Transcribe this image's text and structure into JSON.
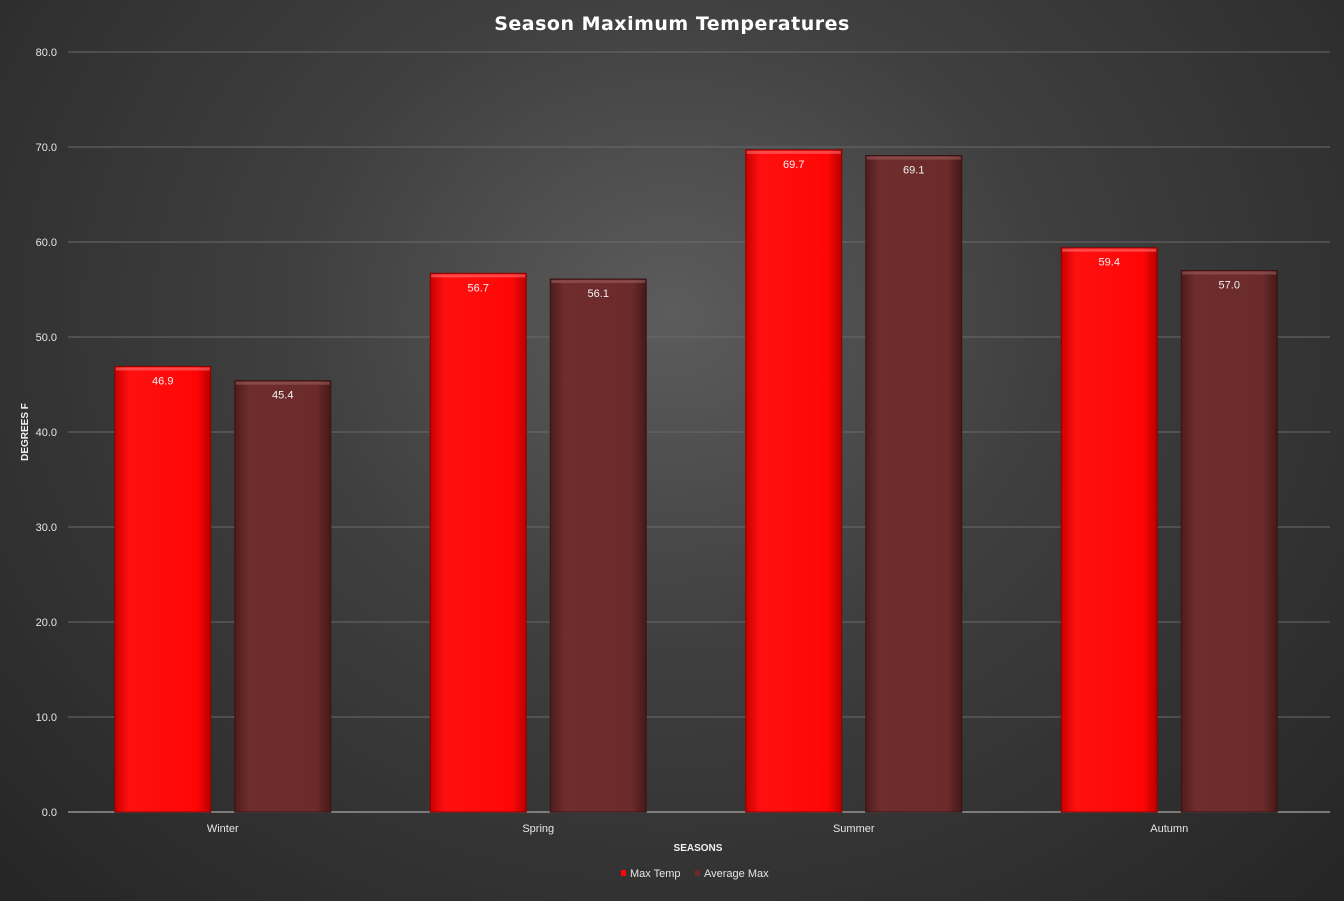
{
  "chart_data": {
    "type": "bar",
    "title": "Season Maximum Temperatures",
    "xlabel": "SEASONS",
    "ylabel": "DEGREES F",
    "categories": [
      "Winter",
      "Spring",
      "Summer",
      "Autumn"
    ],
    "series": [
      {
        "name": "Max Temp",
        "values": [
          46.9,
          56.7,
          69.7,
          59.4
        ],
        "color": "#ff0505"
      },
      {
        "name": "Average Max",
        "values": [
          45.4,
          56.1,
          69.1,
          57.0
        ],
        "color": "#6b2b2b"
      }
    ],
    "ylim": [
      0,
      80
    ],
    "yticks": [
      "0.0",
      "10.0",
      "20.0",
      "30.0",
      "40.0",
      "50.0",
      "60.0",
      "70.0",
      "80.0"
    ],
    "data_labels": [
      [
        "46.9",
        "56.7",
        "69.7",
        "59.4"
      ],
      [
        "45.4",
        "56.1",
        "69.1",
        "57.0"
      ]
    ],
    "grid": true,
    "legend_position": "bottom-center"
  }
}
